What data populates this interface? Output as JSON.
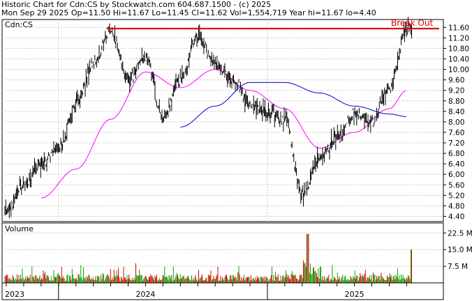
{
  "header": {
    "line1": "Historic Chart for Cdn:CS by Stockwatch.com 604.687.1500 - (c) 2025",
    "line2": "Mon Sep 29 2025   Op=11.50   Hi=11.67   Lo=11.45   Cl=11.62   Vol=1,554,719   Year hi=11.67   lo=4.40"
  },
  "price_panel": {
    "label": "Cdn:CS",
    "annotation": "Break Out"
  },
  "volume_panel": {
    "label": "Volume"
  },
  "colors": {
    "price_bars": "#000000",
    "ma_short": "#ff00ff",
    "ma_long": "#0000cc",
    "breakout_line": "#e00000",
    "volume_up": "#00aa00",
    "volume_down": "#dd0000",
    "grid": "#c8c8c8"
  },
  "chart_data": [
    {
      "type": "line",
      "title": "Historic Chart for Cdn:CS",
      "ylim": [
        4.2,
        11.9
      ],
      "ytick_labels": [
        "11.60",
        "11.20",
        "10.80",
        "10.40",
        "10.00",
        "9.60",
        "9.20",
        "8.80",
        "8.40",
        "8.00",
        "7.60",
        "7.20",
        "6.80",
        "6.40",
        "6.00",
        "5.60",
        "5.20",
        "4.80",
        "4.40"
      ],
      "x_labels": [
        "2023",
        "2024",
        "2025"
      ],
      "series": [
        {
          "role": "price",
          "x": [
            "2023-10",
            "2023-11",
            "2023-12",
            "2024-01",
            "2024-02",
            "2024-03",
            "2024-04",
            "2024-05",
            "2024-06",
            "2024-07",
            "2024-08",
            "2024-09",
            "2024-10",
            "2024-11",
            "2024-12",
            "2025-01",
            "2025-02",
            "2025-03",
            "2025-04",
            "2025-05",
            "2025-06",
            "2025-07",
            "2025-08",
            "2025-09"
          ],
          "values": [
            4.6,
            5.6,
            6.4,
            7.0,
            8.6,
            10.2,
            11.5,
            9.6,
            10.5,
            8.2,
            9.6,
            11.3,
            10.2,
            9.6,
            8.7,
            8.4,
            8.1,
            5.2,
            6.6,
            7.4,
            8.3,
            8.0,
            9.3,
            11.6
          ]
        },
        {
          "role": "ma_short",
          "x": [
            "2023-12",
            "2024-02",
            "2024-04",
            "2024-06",
            "2024-08",
            "2024-10",
            "2024-12",
            "2025-02",
            "2025-04",
            "2025-06",
            "2025-08",
            "2025-09"
          ],
          "values": [
            5.1,
            6.2,
            8.1,
            9.9,
            9.3,
            10.0,
            9.2,
            8.5,
            7.0,
            7.6,
            8.5,
            9.2
          ]
        },
        {
          "role": "ma_long",
          "x": [
            "2024-08",
            "2024-10",
            "2024-12",
            "2025-02",
            "2025-04",
            "2025-06",
            "2025-08",
            "2025-09"
          ],
          "values": [
            7.8,
            8.6,
            9.5,
            9.5,
            9.1,
            8.6,
            8.3,
            8.2
          ]
        }
      ],
      "annotations": [
        {
          "text": "Break Out",
          "level": 11.55
        }
      ]
    },
    {
      "type": "bar",
      "title": "Volume",
      "ylim": [
        0,
        27000000
      ],
      "ytick_labels": [
        "22.5 M",
        "15.0 M",
        "7.5 M"
      ],
      "tick_values": [
        22500000,
        15000000,
        7500000
      ]
    }
  ]
}
